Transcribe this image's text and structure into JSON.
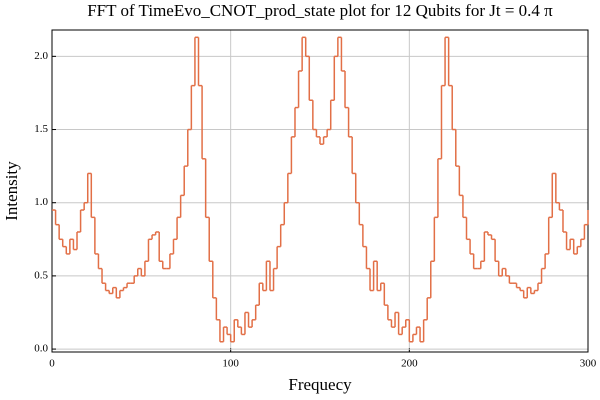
{
  "chart_data": {
    "type": "step",
    "title": "FFT of TimeEvo_CNOT_prod_state plot for 12 Qubits for Jt = 0.4 π",
    "x_label": "Frequecy",
    "y_label": "Intensity",
    "x": [
      0,
      2,
      4,
      6,
      8,
      10,
      12,
      14,
      16,
      18,
      20,
      22,
      24,
      26,
      28,
      30,
      32,
      34,
      36,
      38,
      40,
      42,
      44,
      46,
      48,
      50,
      52,
      54,
      56,
      58,
      60,
      62,
      64,
      66,
      68,
      70,
      72,
      74,
      76,
      78,
      80,
      82,
      84,
      86,
      88,
      90,
      92,
      94,
      96,
      98,
      100,
      102,
      104,
      106,
      108,
      110,
      112,
      114,
      116,
      118,
      120,
      122,
      124,
      126,
      128,
      130,
      132,
      134,
      136,
      138,
      140,
      142,
      144,
      146,
      148,
      150,
      152,
      154,
      156,
      158,
      160,
      162,
      164,
      166,
      168,
      170,
      172,
      174,
      176,
      178,
      180,
      182,
      184,
      186,
      188,
      190,
      192,
      194,
      196,
      198,
      200,
      202,
      204,
      206,
      208,
      210,
      212,
      214,
      216,
      218,
      220,
      222,
      224,
      226,
      228,
      230,
      232,
      234,
      236,
      238,
      240,
      242,
      244,
      246,
      248,
      250,
      252,
      254,
      256,
      258,
      260,
      262,
      264,
      266,
      268,
      270,
      272,
      274,
      276,
      278,
      280,
      282,
      284,
      286,
      288,
      290,
      292,
      294,
      296,
      298,
      300
    ],
    "series": [
      {
        "color": "#e26f46",
        "values": [
          0.95,
          0.85,
          0.75,
          0.7,
          0.65,
          0.75,
          0.68,
          0.8,
          0.95,
          1.0,
          1.2,
          0.9,
          0.65,
          0.55,
          0.45,
          0.4,
          0.38,
          0.42,
          0.35,
          0.4,
          0.42,
          0.45,
          0.45,
          0.5,
          0.55,
          0.5,
          0.6,
          0.75,
          0.78,
          0.8,
          0.6,
          0.55,
          0.55,
          0.65,
          0.75,
          0.9,
          1.05,
          1.25,
          1.5,
          1.8,
          2.13,
          1.8,
          1.3,
          0.9,
          0.6,
          0.35,
          0.2,
          0.05,
          0.15,
          0.1,
          0.05,
          0.2,
          0.15,
          0.1,
          0.25,
          0.15,
          0.2,
          0.3,
          0.45,
          0.4,
          0.6,
          0.4,
          0.55,
          0.7,
          0.85,
          1.0,
          1.2,
          1.45,
          1.65,
          1.9,
          2.13,
          2.0,
          1.7,
          1.5,
          1.45,
          1.4,
          1.45,
          1.5,
          1.7,
          2.0,
          2.13,
          1.9,
          1.65,
          1.45,
          1.2,
          1.0,
          0.85,
          0.7,
          0.55,
          0.4,
          0.6,
          0.4,
          0.45,
          0.3,
          0.2,
          0.15,
          0.25,
          0.1,
          0.15,
          0.2,
          0.05,
          0.1,
          0.15,
          0.05,
          0.2,
          0.35,
          0.6,
          0.9,
          1.3,
          1.8,
          2.13,
          1.8,
          1.5,
          1.25,
          1.05,
          0.9,
          0.75,
          0.65,
          0.55,
          0.55,
          0.6,
          0.8,
          0.78,
          0.75,
          0.6,
          0.5,
          0.55,
          0.5,
          0.45,
          0.45,
          0.42,
          0.4,
          0.35,
          0.42,
          0.38,
          0.4,
          0.45,
          0.55,
          0.65,
          0.9,
          1.2,
          1.0,
          0.95,
          0.8,
          0.68,
          0.75,
          0.65,
          0.7,
          0.75,
          0.85,
          0.95
        ]
      }
    ],
    "xlim": [
      0,
      300
    ],
    "xticks": [
      0,
      100,
      200,
      300
    ],
    "ylim": [
      -0.02,
      2.18
    ],
    "yticks": [
      {
        "value": 0,
        "label": "0.0"
      },
      0.5,
      {
        "value": 1,
        "label": "1.0"
      },
      1.5,
      {
        "value": 2,
        "label": "2.0"
      }
    ],
    "grid": true
  }
}
